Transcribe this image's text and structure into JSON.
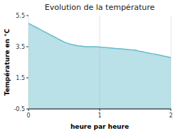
{
  "chart_data": {
    "type": "area",
    "title": "Evolution de la température",
    "x_label": "heure par heure",
    "y_label": "Température en °C",
    "color": "#66bbcc",
    "grid": "x",
    "xlim": [
      0,
      2
    ],
    "ylim": [
      -0.5,
      5.5
    ],
    "xticks": [
      0,
      1,
      2
    ],
    "yticks": [
      -0.5,
      1.5,
      3.5,
      5.5
    ],
    "x": [
      0.0,
      0.05,
      0.1,
      0.15,
      0.2,
      0.25,
      0.3,
      0.35,
      0.4,
      0.45,
      0.5,
      0.55,
      0.6,
      0.65,
      0.7,
      0.75,
      0.8,
      0.85,
      0.9,
      0.95,
      1.0,
      1.05,
      1.1,
      1.15,
      1.2,
      1.25,
      1.3,
      1.35,
      1.4,
      1.45,
      1.5,
      1.55,
      1.6,
      1.65,
      1.7,
      1.75,
      1.8,
      1.85,
      1.9,
      1.95,
      2.0
    ],
    "values": [
      5.0,
      4.88,
      4.76,
      4.64,
      4.52,
      4.4,
      4.28,
      4.16,
      4.04,
      3.92,
      3.8,
      3.72,
      3.65,
      3.6,
      3.56,
      3.53,
      3.5,
      3.5,
      3.5,
      3.5,
      3.48,
      3.46,
      3.44,
      3.42,
      3.4,
      3.38,
      3.36,
      3.34,
      3.32,
      3.3,
      3.28,
      3.22,
      3.18,
      3.12,
      3.08,
      3.04,
      3.0,
      2.95,
      2.9,
      2.85,
      2.8
    ]
  }
}
